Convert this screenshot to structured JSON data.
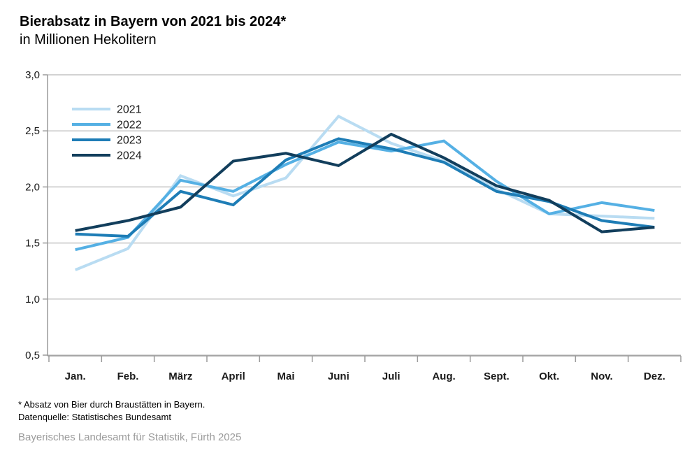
{
  "title": "Bierabsatz in Bayern von 2021 bis 2024*",
  "subtitle": "in Millionen Hekolitern",
  "footnotes": {
    "note1": "* Absatz von Bier durch Braustätten in Bayern.",
    "note2": "Datenquelle: Statistisches Bundesamt"
  },
  "publisher": "Bayerisches Landesamt für Statistik, Fürth 2025",
  "colors": {
    "series_2021": "#b9dcf2",
    "series_2022": "#55b0e4",
    "series_2023": "#1e7db6",
    "series_2024": "#123e5c",
    "gridline": "#c4c4c4",
    "axis": "#9a9a9a",
    "publisher_text": "#9b9b9b"
  },
  "chart_data": {
    "type": "line",
    "title": "Bierabsatz in Bayern von 2021 bis 2024*",
    "subtitle": "in Millionen Hekolitern",
    "xlabel": "",
    "ylabel": "",
    "ylim": [
      0.5,
      3.0
    ],
    "ytick_step": 0.5,
    "ytick_labels": [
      "0,5",
      "1,0",
      "1,5",
      "2,0",
      "2,5",
      "3,0"
    ],
    "grid": true,
    "legend_position": "top-left",
    "categories": [
      "Jan.",
      "Feb.",
      "März",
      "April",
      "Mai",
      "Juni",
      "Juli",
      "Aug.",
      "Sept.",
      "Okt.",
      "Nov.",
      "Dez."
    ],
    "series": [
      {
        "name": "2021",
        "color": "#b9dcf2",
        "values": [
          1.26,
          1.45,
          2.1,
          1.92,
          2.08,
          2.63,
          2.39,
          2.23,
          1.98,
          1.76,
          1.74,
          1.72
        ]
      },
      {
        "name": "2022",
        "color": "#55b0e4",
        "values": [
          1.44,
          1.55,
          2.06,
          1.96,
          2.2,
          2.4,
          2.32,
          2.41,
          2.05,
          1.76,
          1.86,
          1.79
        ]
      },
      {
        "name": "2023",
        "color": "#1e7db6",
        "values": [
          1.58,
          1.56,
          1.96,
          1.84,
          2.24,
          2.43,
          2.34,
          2.22,
          1.96,
          1.87,
          1.7,
          1.64
        ]
      },
      {
        "name": "2024",
        "color": "#123e5c",
        "values": [
          1.61,
          1.7,
          1.82,
          2.23,
          2.3,
          2.19,
          2.47,
          2.26,
          2.01,
          1.88,
          1.6,
          1.64
        ]
      }
    ]
  }
}
